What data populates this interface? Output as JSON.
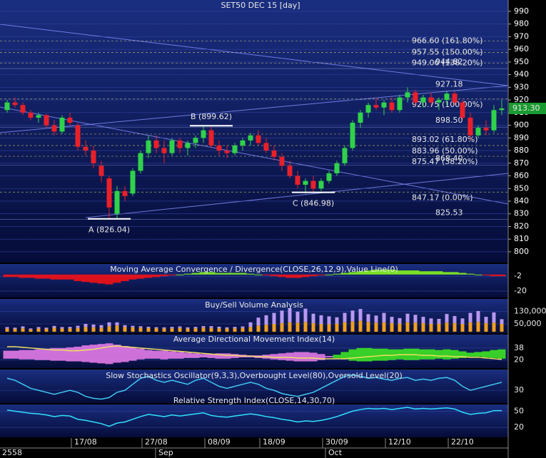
{
  "chart_data": {
    "type": "candlestick",
    "title": "SET50 DEC 15   [day]",
    "ylim": [
      791.5,
      999
    ],
    "yticks": [
      800,
      810,
      820,
      830,
      840,
      850,
      860,
      870,
      880,
      890,
      900,
      910,
      920,
      930,
      940,
      950,
      960,
      970,
      980,
      990
    ],
    "last": {
      "value": 913.3,
      "label": "913.30"
    },
    "colors": {
      "up": "#2fd24a",
      "down": "#e8202a",
      "fib": "#e8e070",
      "level": "#9fb0ff"
    },
    "categories": [
      null,
      null,
      null,
      null,
      null,
      null,
      null,
      null,
      "17/08",
      null,
      null,
      null,
      null,
      null,
      null,
      null,
      null,
      "27/08",
      null,
      null,
      null,
      null,
      null,
      null,
      null,
      "08/09",
      null,
      null,
      null,
      null,
      null,
      null,
      "18/09",
      null,
      null,
      null,
      null,
      null,
      null,
      null,
      "30/09",
      null,
      null,
      null,
      null,
      null,
      null,
      null,
      "12/10",
      null,
      null,
      null,
      null,
      null,
      null,
      null,
      "22/10",
      null,
      null,
      null,
      null,
      null,
      null,
      null
    ],
    "months": [
      "2558",
      "Sep",
      "Oct"
    ],
    "ohlc": [
      [
        912,
        920,
        910,
        918
      ],
      [
        918,
        922,
        914,
        916
      ],
      [
        916,
        918,
        908,
        910
      ],
      [
        910,
        912,
        904,
        906
      ],
      [
        906,
        910,
        902,
        908
      ],
      [
        908,
        909,
        898,
        900
      ],
      [
        900,
        904,
        892,
        895
      ],
      [
        895,
        908,
        893,
        906
      ],
      [
        906,
        910,
        900,
        902
      ],
      [
        900,
        902,
        880,
        883
      ],
      [
        883,
        888,
        876,
        880
      ],
      [
        880,
        884,
        866,
        870
      ],
      [
        868,
        872,
        855,
        860
      ],
      [
        858,
        860,
        826,
        835
      ],
      [
        830,
        852,
        826,
        848
      ],
      [
        848,
        852,
        840,
        844
      ],
      [
        846,
        866,
        844,
        864
      ],
      [
        864,
        880,
        862,
        878
      ],
      [
        878,
        892,
        874,
        888
      ],
      [
        888,
        892,
        878,
        882
      ],
      [
        882,
        888,
        870,
        878
      ],
      [
        878,
        890,
        876,
        888
      ],
      [
        888,
        890,
        878,
        882
      ],
      [
        882,
        888,
        876,
        886
      ],
      [
        886,
        892,
        882,
        890
      ],
      [
        890,
        900,
        886,
        896
      ],
      [
        896,
        900,
        882,
        884
      ],
      [
        884,
        888,
        876,
        880
      ],
      [
        880,
        884,
        874,
        878
      ],
      [
        878,
        886,
        876,
        884
      ],
      [
        884,
        890,
        880,
        888
      ],
      [
        888,
        894,
        884,
        892
      ],
      [
        892,
        896,
        884,
        886
      ],
      [
        886,
        890,
        878,
        880
      ],
      [
        880,
        884,
        872,
        875
      ],
      [
        875,
        878,
        864,
        868
      ],
      [
        868,
        872,
        858,
        860
      ],
      [
        860,
        864,
        850,
        853
      ],
      [
        853,
        858,
        846,
        856
      ],
      [
        856,
        860,
        847,
        850
      ],
      [
        850,
        858,
        848,
        856
      ],
      [
        856,
        864,
        854,
        862
      ],
      [
        862,
        872,
        860,
        870
      ],
      [
        870,
        884,
        868,
        882
      ],
      [
        882,
        904,
        880,
        902
      ],
      [
        902,
        912,
        898,
        910
      ],
      [
        910,
        918,
        906,
        916
      ],
      [
        916,
        922,
        912,
        914
      ],
      [
        914,
        920,
        908,
        918
      ],
      [
        918,
        922,
        910,
        912
      ],
      [
        912,
        924,
        910,
        922
      ],
      [
        922,
        930,
        918,
        926
      ],
      [
        926,
        928,
        916,
        918
      ],
      [
        918,
        924,
        914,
        922
      ],
      [
        922,
        926,
        916,
        918
      ],
      [
        918,
        922,
        912,
        920
      ],
      [
        920,
        927,
        916,
        925
      ],
      [
        925,
        927,
        916,
        918
      ],
      [
        918,
        920,
        904,
        906
      ],
      [
        906,
        910,
        888,
        892
      ],
      [
        892,
        900,
        890,
        898
      ],
      [
        898,
        904,
        892,
        896
      ],
      [
        896,
        916,
        894,
        912
      ],
      [
        912,
        920,
        908,
        913.3
      ]
    ],
    "fib": [
      {
        "value": 966.6,
        "label": "966.60 (161.80%)"
      },
      {
        "value": 957.55,
        "label": "957.55 (150.00%)"
      },
      {
        "value": 949.06,
        "label": "949.06 (138.20%)"
      },
      {
        "value": 920.75,
        "label": "920.75 (100.00%)"
      },
      {
        "value": 893.02,
        "label": "893.02 (61.80%)"
      },
      {
        "value": 883.96,
        "label": "883.96 (50.00%)"
      },
      {
        "value": 875.47,
        "label": "875.47 (38.20%)"
      },
      {
        "value": 847.17,
        "label": "847.17 (0.00%)"
      }
    ],
    "levels": [
      {
        "value": 944.82,
        "label": "944.82"
      },
      {
        "value": 927.18,
        "label": "927.18"
      },
      {
        "value": 898.5,
        "label": "898.50"
      },
      {
        "value": 868.4,
        "label": "868.40"
      },
      {
        "value": 825.53,
        "label": "825.53"
      }
    ],
    "points": [
      {
        "index": 13,
        "value": 826.04,
        "label": "A (826.04)"
      },
      {
        "index": 26,
        "value": 899.62,
        "label": "B (899.62)"
      },
      {
        "index": 39,
        "value": 846.98,
        "label": "C (846.98)"
      }
    ]
  },
  "macd": {
    "title": "Moving Average Convergence / Divergence(CLOSE,26,12,9),Value Line(0)",
    "ylim": [
      -27,
      12
    ],
    "yticks": [
      -2,
      -20
    ],
    "colors": {
      "up": "#8cff1a",
      "down": "#ff1010"
    },
    "values": [
      -3,
      -3,
      -4,
      -4,
      -5,
      -5,
      -6,
      -6,
      -6,
      -8,
      -9,
      -10,
      -11,
      -12,
      -10,
      -8,
      -6,
      -5,
      -4,
      -3,
      -2,
      -1,
      0,
      1,
      2,
      3,
      3,
      2,
      2,
      2,
      2,
      1,
      0,
      -1,
      -2,
      -3,
      -4,
      -4,
      -3,
      -2,
      -1,
      0,
      1,
      2,
      3,
      4,
      5,
      6,
      6,
      6,
      5,
      5,
      5,
      4,
      4,
      4,
      3,
      3,
      2,
      1,
      0,
      -1,
      -2,
      -2
    ]
  },
  "volume": {
    "title": "Buy/Sell Volume Analysis",
    "ylim": [
      0,
      200000
    ],
    "yticks": [
      {
        "value": 130000,
        "label": "130,000"
      },
      {
        "value": 50000,
        "label": "50,000"
      }
    ],
    "series": [
      {
        "name": "Buy",
        "color": "#f0a020",
        "values": [
          20000,
          18000,
          22000,
          15000,
          20000,
          18000,
          25000,
          20000,
          22000,
          24000,
          30000,
          28000,
          26000,
          35000,
          40000,
          30000,
          28000,
          26000,
          24000,
          22000,
          20000,
          22000,
          24000,
          20000,
          22000,
          26000,
          24000,
          22000,
          20000,
          22000,
          24000,
          30000,
          40000,
          45000,
          50000,
          55000,
          60000,
          58000,
          62000,
          55000,
          50000,
          48000,
          52000,
          60000,
          65000,
          70000,
          62000,
          58000,
          60000,
          55000,
          52000,
          60000,
          58000,
          55000,
          50000,
          52000,
          58000,
          55000,
          50000,
          60000,
          62000,
          55000,
          58000,
          50000
        ]
      },
      {
        "name": "Sell",
        "color": "#b898f0",
        "values": [
          10000,
          8000,
          12000,
          6000,
          10000,
          8000,
          12000,
          10000,
          9000,
          14000,
          20000,
          18000,
          16000,
          25000,
          20000,
          12000,
          10000,
          9000,
          8000,
          7000,
          8000,
          9000,
          10000,
          8000,
          9000,
          10000,
          12000,
          10000,
          8000,
          9000,
          10000,
          30000,
          50000,
          60000,
          70000,
          80000,
          90000,
          70000,
          85000,
          60000,
          55000,
          50000,
          40000,
          60000,
          70000,
          75000,
          50000,
          45000,
          60000,
          40000,
          35000,
          55000,
          50000,
          40000,
          35000,
          30000,
          55000,
          45000,
          35000,
          60000,
          70000,
          40000,
          65000,
          30000
        ]
      }
    ]
  },
  "adx": {
    "title": "Average Directional Movement Index(14)",
    "ylim": [
      9,
      57
    ],
    "yticks": [
      38,
      20
    ],
    "colors": {
      "plus": "#40f020",
      "minus": "#f080f0",
      "adx": "#f0e060"
    },
    "adx": [
      40,
      40,
      39,
      38,
      37,
      36,
      35,
      35,
      34,
      34,
      35,
      36,
      38,
      40,
      41,
      40,
      39,
      38,
      37,
      36,
      35,
      34,
      33,
      32,
      31,
      30,
      29,
      28,
      27,
      27,
      26,
      26,
      25,
      25,
      24,
      24,
      24,
      23,
      23,
      23,
      22,
      22,
      22,
      22,
      23,
      24,
      25,
      26,
      27,
      27,
      28,
      28,
      28,
      27,
      27,
      26,
      26,
      25,
      25,
      24,
      24,
      23,
      22,
      21
    ],
    "di_plus": [
      22,
      22,
      21,
      21,
      20,
      20,
      19,
      19,
      18,
      18,
      17,
      16,
      15,
      14,
      16,
      17,
      19,
      21,
      22,
      22,
      21,
      22,
      22,
      23,
      23,
      24,
      23,
      22,
      22,
      23,
      24,
      24,
      23,
      22,
      21,
      20,
      19,
      18,
      18,
      18,
      20,
      24,
      28,
      32,
      36,
      38,
      38,
      37,
      37,
      36,
      36,
      37,
      37,
      36,
      36,
      35,
      36,
      35,
      33,
      31,
      32,
      33,
      35,
      36
    ],
    "di_minus": [
      34,
      34,
      35,
      35,
      36,
      37,
      38,
      38,
      39,
      40,
      42,
      43,
      44,
      45,
      43,
      41,
      39,
      37,
      35,
      34,
      34,
      33,
      32,
      31,
      30,
      29,
      29,
      30,
      30,
      29,
      28,
      27,
      27,
      28,
      29,
      30,
      31,
      32,
      32,
      31,
      29,
      26,
      23,
      21,
      19,
      18,
      18,
      19,
      19,
      20,
      21,
      20,
      20,
      21,
      21,
      22,
      21,
      22,
      23,
      25,
      25,
      24,
      23,
      22
    ]
  },
  "stochastic": {
    "title": "Slow Stochastics Oscillator(9,3,3),Overbought Level(80),Oversold Level(20)",
    "ylim": [
      0,
      80
    ],
    "yticks": [
      30
    ],
    "color": "#40c8f0",
    "values": [
      60,
      55,
      45,
      35,
      30,
      25,
      20,
      25,
      30,
      25,
      15,
      10,
      8,
      12,
      25,
      30,
      45,
      60,
      65,
      55,
      50,
      55,
      50,
      45,
      55,
      60,
      50,
      40,
      35,
      40,
      45,
      50,
      45,
      35,
      30,
      22,
      18,
      15,
      20,
      25,
      35,
      45,
      55,
      65,
      68,
      65,
      60,
      62,
      58,
      55,
      60,
      62,
      55,
      58,
      55,
      60,
      62,
      55,
      40,
      30,
      35,
      40,
      45,
      50
    ]
  },
  "rsi": {
    "title": "Relative Strength Index(CLOSE,14,30,70)",
    "ylim": [
      3,
      61
    ],
    "yticks": [
      50,
      20
    ],
    "color": "#30e0ff",
    "values": [
      52,
      50,
      48,
      46,
      45,
      43,
      40,
      42,
      41,
      35,
      33,
      30,
      27,
      22,
      28,
      30,
      35,
      40,
      44,
      42,
      40,
      43,
      41,
      43,
      45,
      47,
      42,
      40,
      39,
      41,
      43,
      45,
      43,
      40,
      38,
      35,
      33,
      30,
      32,
      31,
      33,
      36,
      40,
      45,
      50,
      53,
      55,
      54,
      55,
      53,
      55,
      57,
      54,
      55,
      54,
      55,
      56,
      54,
      48,
      44,
      46,
      47,
      51,
      51
    ]
  }
}
